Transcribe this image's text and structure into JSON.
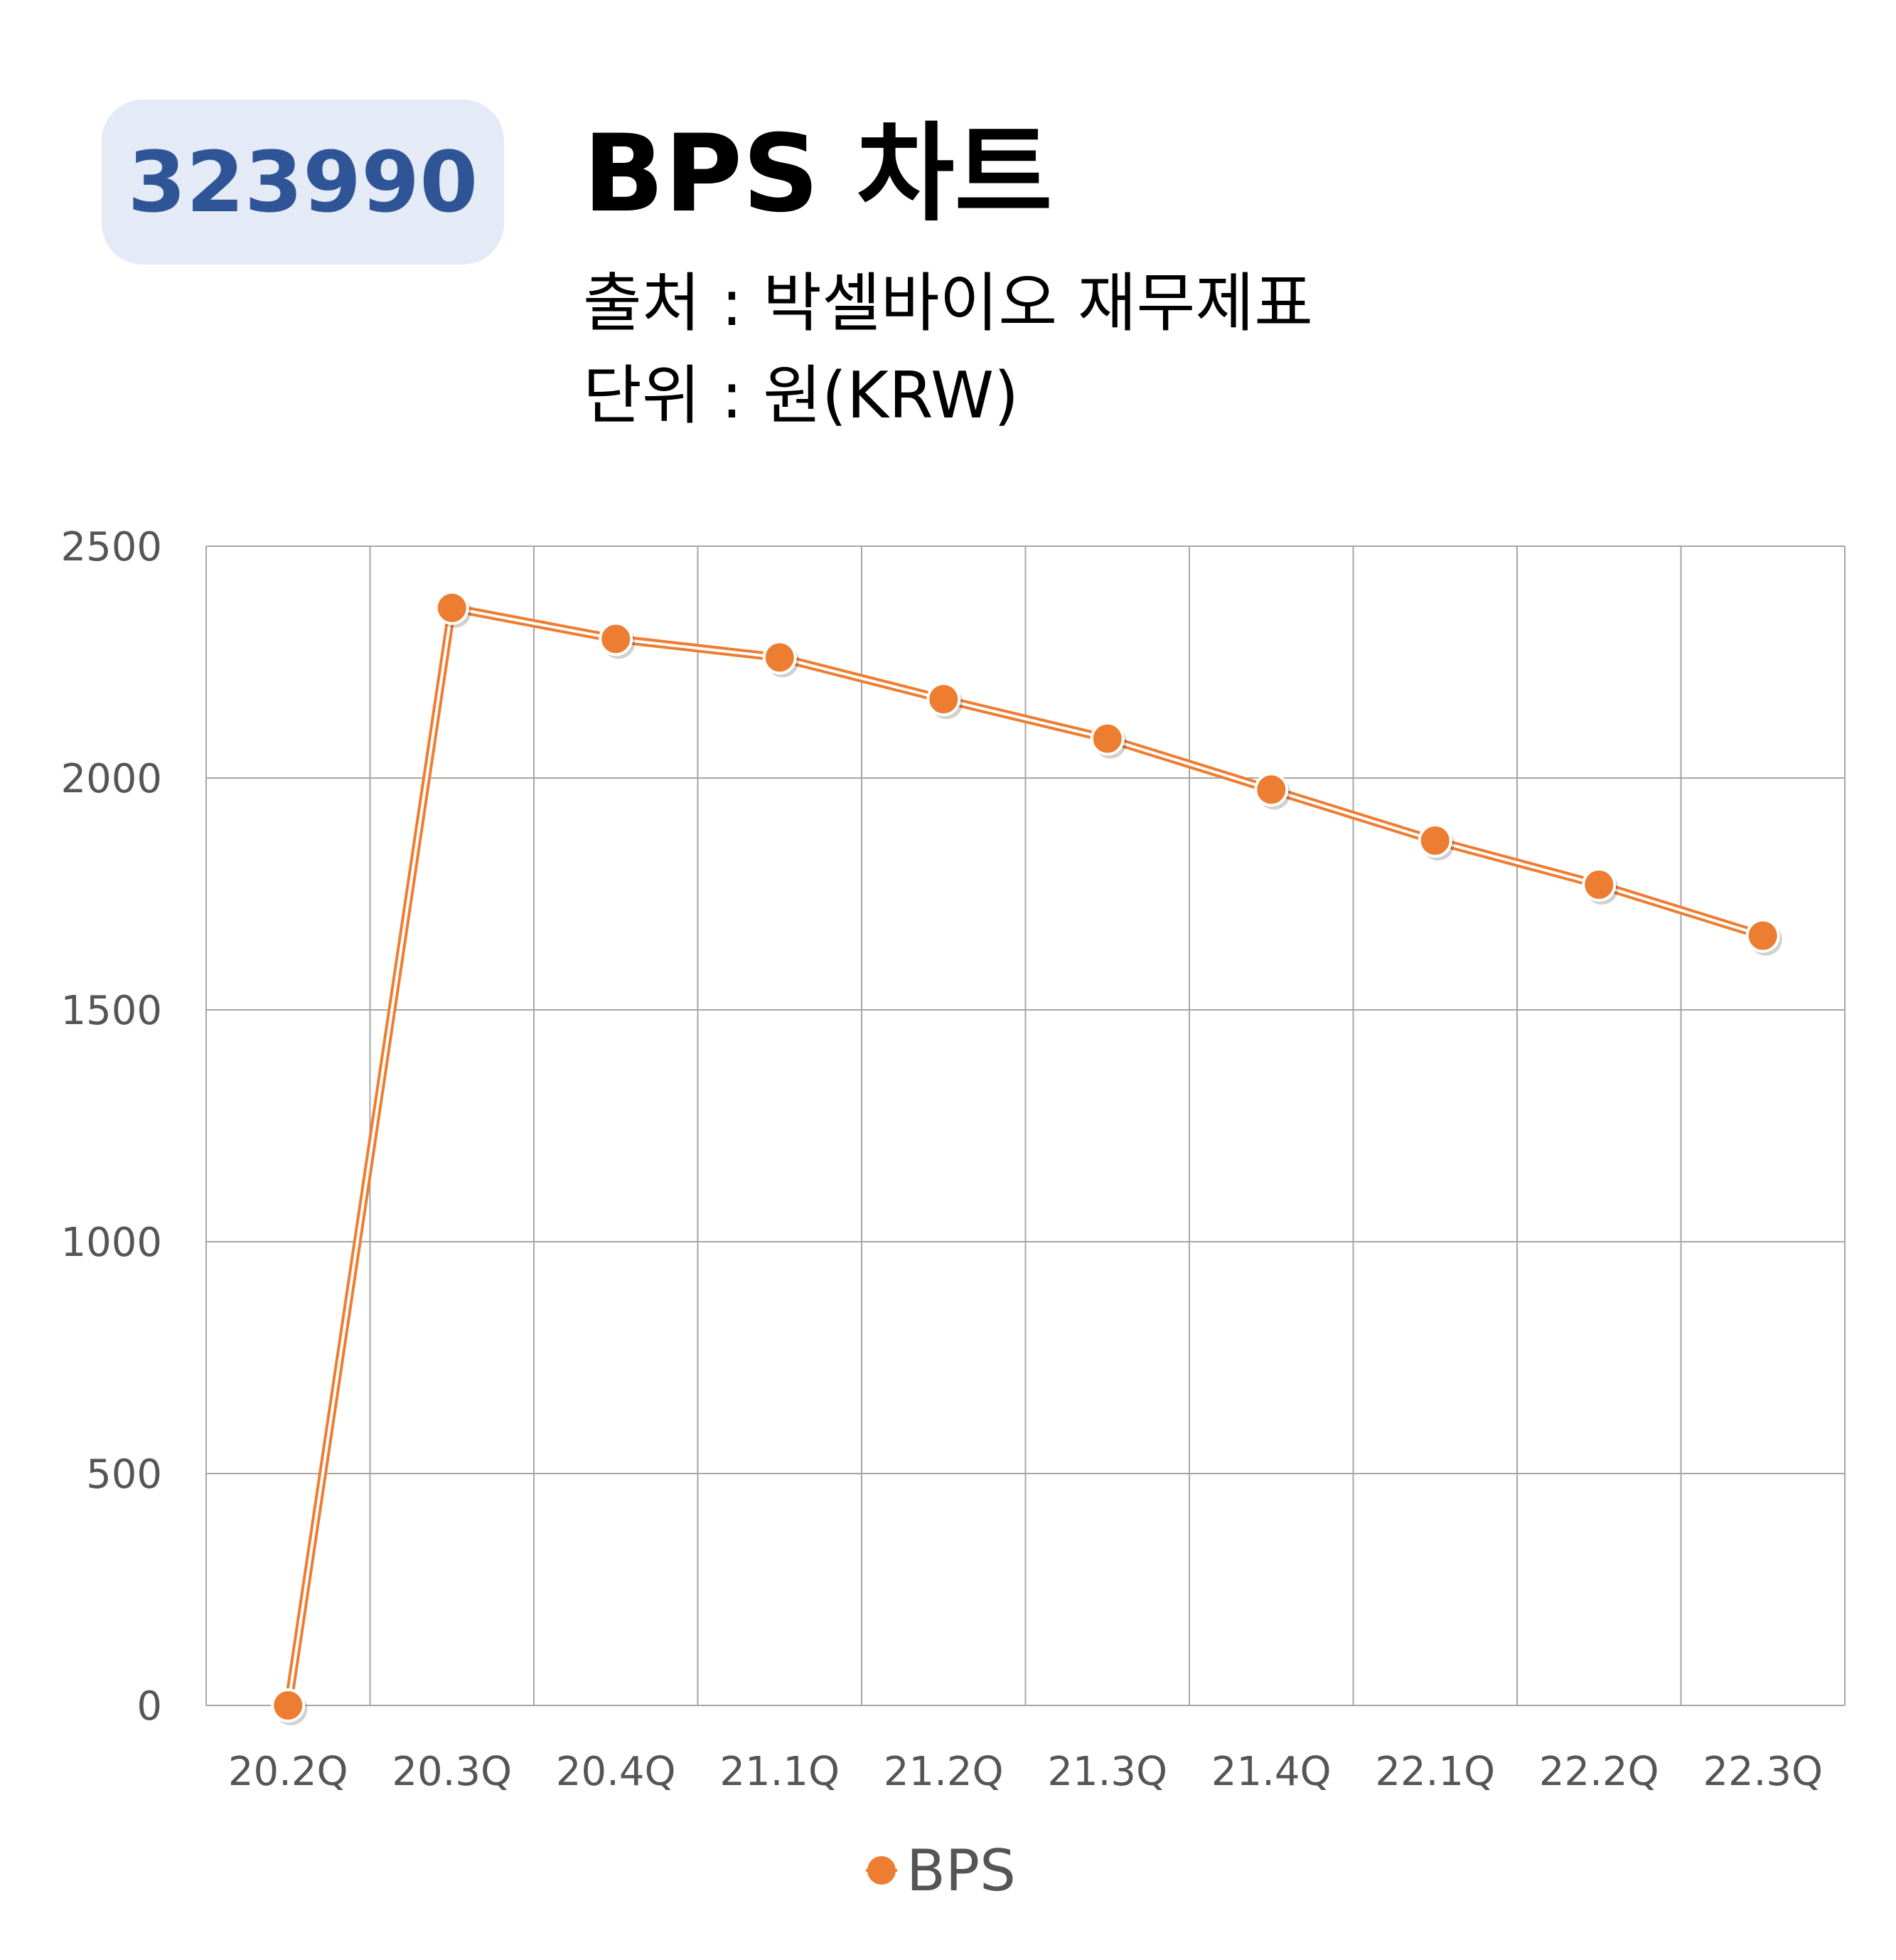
{
  "header": {
    "code": "323990",
    "title": "BPS 차트",
    "source": "출처 : 박셀바이오 재무제표",
    "unit": "단위 : 원(KRW)"
  },
  "colors": {
    "series": "#ed7d31",
    "badge_bg": "#e4eaf6",
    "badge_text": "#2f5597",
    "grid": "#a6a6a6"
  },
  "chart_data": {
    "type": "line",
    "categories": [
      "20.2Q",
      "20.3Q",
      "20.4Q",
      "21.1Q",
      "21.2Q",
      "21.3Q",
      "21.4Q",
      "22.1Q",
      "22.2Q",
      "22.3Q"
    ],
    "series": [
      {
        "name": "BPS",
        "values": [
          0,
          2367,
          2300,
          2260,
          2170,
          2085,
          1975,
          1865,
          1770,
          1660
        ]
      }
    ],
    "yticks": [
      "2500",
      "2000",
      "1500",
      "1000",
      "500",
      "0"
    ],
    "ylim": [
      0,
      2500
    ],
    "grid": true,
    "legend": "bottom"
  }
}
